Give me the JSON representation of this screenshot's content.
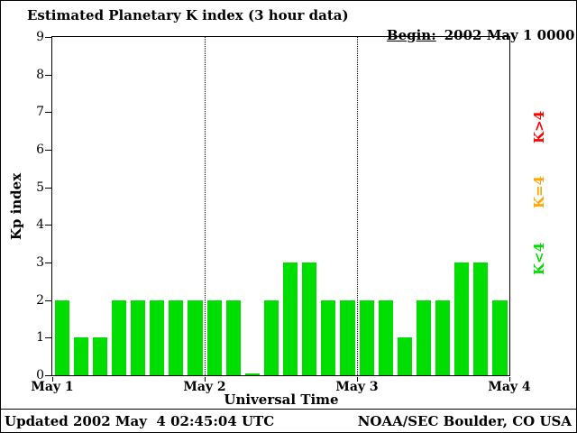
{
  "header": {
    "title": "Estimated Planetary K index (3 hour data)",
    "begin_label": "Begin:",
    "begin_value": "2002 May 1 0000 UTC"
  },
  "chart_data": {
    "type": "bar",
    "title": "Estimated Planetary K index (3 hour data)",
    "xlabel": "Universal Time",
    "ylabel": "Kp index",
    "ylim": [
      0,
      9
    ],
    "y_tick_step": 1,
    "x_ticks": [
      "May 1",
      "May 2",
      "May 3",
      "May 4"
    ],
    "bar_interval_hours": 3,
    "values": [
      2,
      1,
      1,
      2,
      2,
      2,
      2,
      2,
      2,
      2,
      0,
      2,
      3,
      3,
      2,
      2,
      2,
      2,
      1,
      2,
      2,
      3,
      3,
      2
    ],
    "grid": "dotted vertical lines at day boundaries (May 2, May 3)",
    "legend_position": "right, rotated 90 degrees"
  },
  "legend": {
    "items": [
      {
        "label": "K>4",
        "color": "#FF0000"
      },
      {
        "label": "K=4",
        "color": "#FFA500"
      },
      {
        "label": "K<4",
        "color": "#00DD00"
      }
    ]
  },
  "colors": {
    "bar_green": "#00DD00",
    "axis": "#000000",
    "background": "#FFFFFF"
  },
  "footer": {
    "updated": "Updated 2002 May  4 02:45:04 UTC",
    "source": "NOAA/SEC Boulder, CO USA"
  }
}
